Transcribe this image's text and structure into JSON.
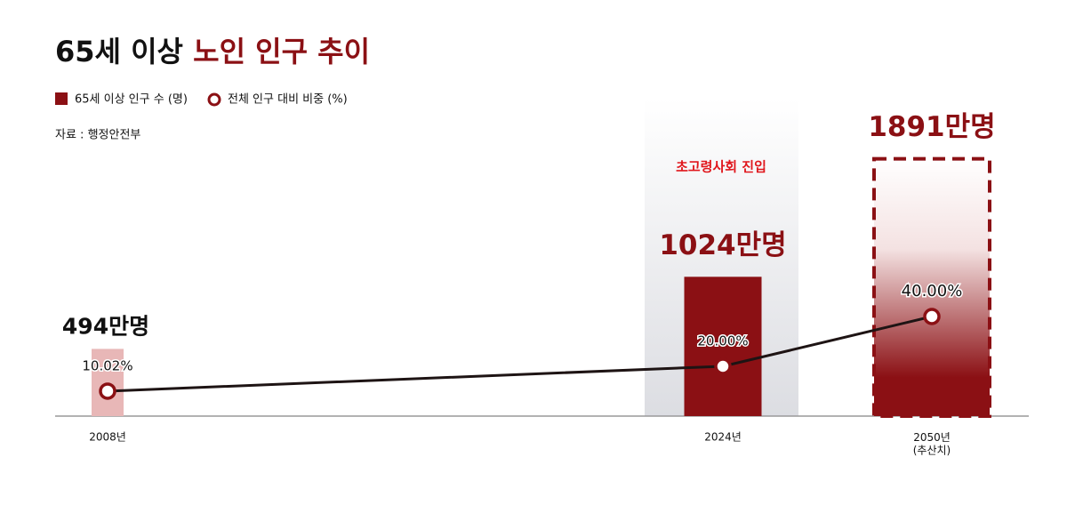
{
  "chart_data": {
    "type": "bar-line",
    "title": {
      "plain": "65세 이상",
      "highlight": "노인 인구 추이"
    },
    "source": "자료 : 행정안전부",
    "annotation": "초고령사회 진입",
    "categories": [
      "2008년",
      "2024년",
      "2050년\n(추산치)"
    ],
    "series": [
      {
        "name": "65세 이상 인구 수 (명)",
        "type": "bar",
        "color": "#8b1014",
        "colors": [
          "#e8b7b7",
          "#8b1014",
          "#8b1014"
        ],
        "values": [
          494,
          1024,
          1891
        ],
        "value_labels": [
          "494만명",
          "1024만명",
          "1891만명"
        ]
      },
      {
        "name": "전체 인구 대비 비중 (%)",
        "type": "line",
        "color": "#1e1414",
        "values": [
          10.02,
          20.0,
          40.0
        ],
        "value_labels": [
          "10.02%",
          "20.00%",
          "40.00%"
        ]
      }
    ]
  }
}
